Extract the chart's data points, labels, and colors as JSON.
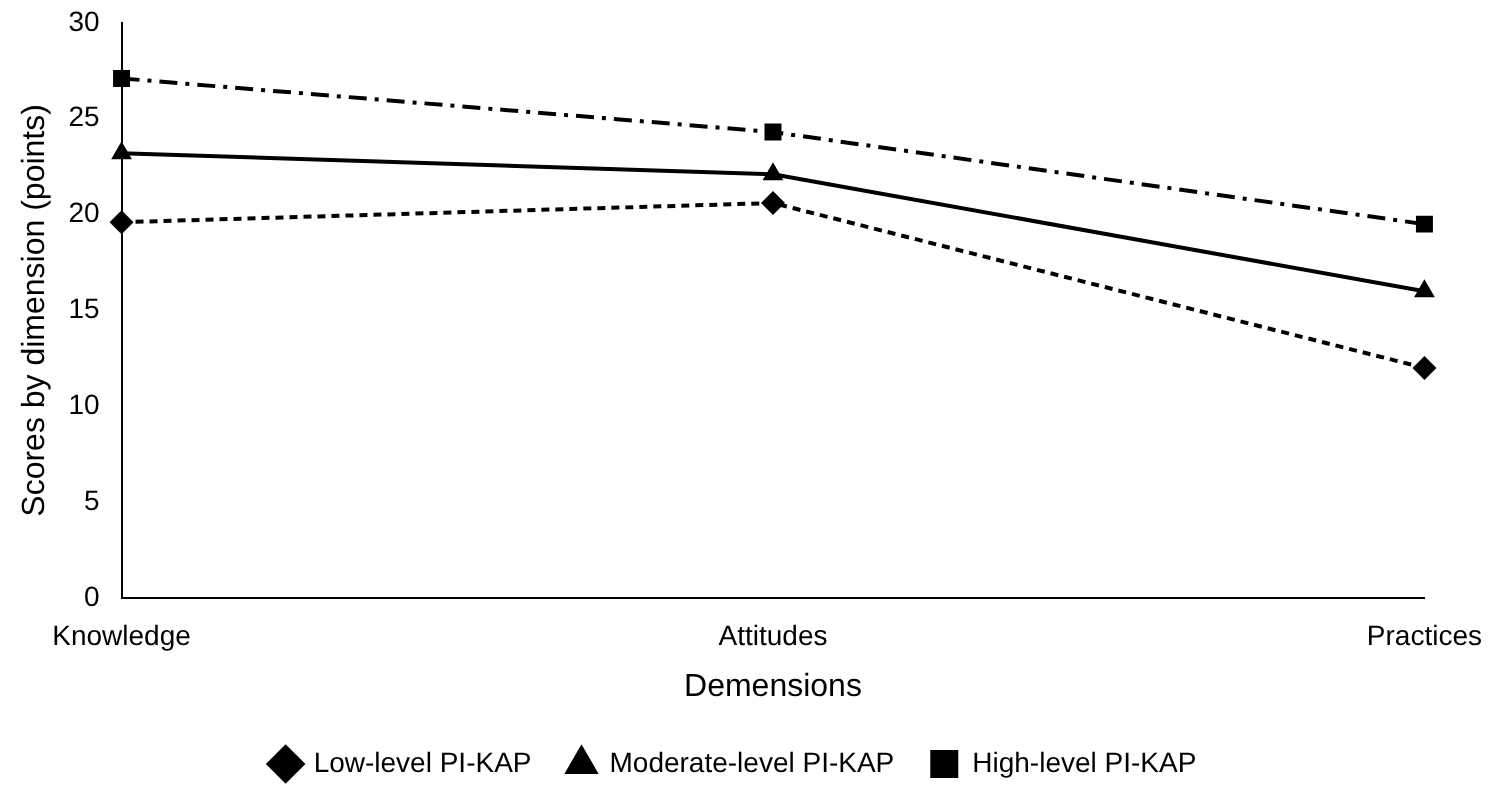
{
  "chart_data": {
    "type": "line",
    "xlabel": "Demensions",
    "ylabel": "Scores by dimension (points)",
    "categories": [
      "Knowledge",
      "Attitudes",
      "Practices"
    ],
    "series": [
      {
        "name": "Low-level PI-KAP",
        "color": "#000000",
        "values": [
          19.6,
          20.6,
          12.0
        ],
        "marker": "diamond",
        "line_style": "dotted"
      },
      {
        "name": "Moderate-level PI-KAP",
        "color": "#000000",
        "values": [
          23.2,
          22.1,
          16.0
        ],
        "marker": "triangle",
        "line_style": "solid"
      },
      {
        "name": "High-level PI-KAP",
        "color": "#000000",
        "values": [
          27.1,
          24.3,
          19.5
        ],
        "marker": "square",
        "line_style": "dashed"
      }
    ],
    "ylim": [
      0,
      30
    ],
    "yticks": [
      0,
      5,
      10,
      15,
      20,
      25,
      30
    ],
    "grid": false,
    "legend": "bottom"
  }
}
